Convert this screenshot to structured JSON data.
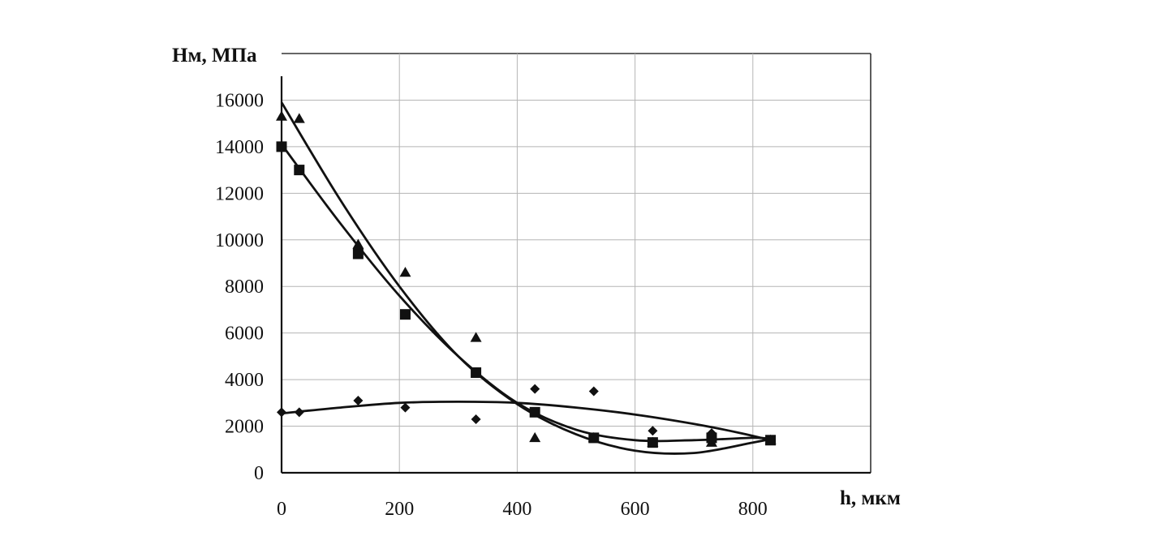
{
  "chart_data": {
    "type": "scatter",
    "ylabel": "Нм, МПа",
    "xlabel": "h, мкм",
    "xlim": [
      0,
      1000
    ],
    "ylim": [
      0,
      18000
    ],
    "xticks": [
      "0",
      "200",
      "400",
      "600",
      "800"
    ],
    "yticks": [
      "0",
      "2000",
      "4000",
      "6000",
      "8000",
      "10000",
      "12000",
      "14000",
      "16000"
    ],
    "grid": true,
    "legend": "none",
    "series": [
      {
        "marker": "triangle",
        "x": [
          0,
          30,
          130,
          210,
          330,
          430,
          530,
          630,
          730,
          830
        ],
        "y": [
          15300,
          15200,
          9800,
          8600,
          5800,
          1500,
          1500,
          1300,
          1300,
          1400
        ],
        "trend": [
          [
            0,
            15900
          ],
          [
            100,
            11700
          ],
          [
            200,
            8000
          ],
          [
            300,
            5000
          ],
          [
            400,
            2950
          ],
          [
            500,
            1650
          ],
          [
            600,
            950
          ],
          [
            700,
            850
          ],
          [
            800,
            1300
          ],
          [
            830,
            1450
          ]
        ]
      },
      {
        "marker": "square",
        "x": [
          0,
          30,
          130,
          210,
          330,
          430,
          530,
          630,
          730,
          830
        ],
        "y": [
          14000,
          13000,
          9400,
          6800,
          4300,
          2600,
          1500,
          1300,
          1500,
          1400
        ],
        "trend": [
          [
            0,
            14100
          ],
          [
            100,
            10700
          ],
          [
            200,
            7600
          ],
          [
            300,
            5000
          ],
          [
            400,
            3000
          ],
          [
            500,
            1850
          ],
          [
            600,
            1400
          ],
          [
            700,
            1400
          ],
          [
            800,
            1500
          ],
          [
            830,
            1450
          ]
        ]
      },
      {
        "marker": "diamond",
        "x": [
          0,
          30,
          130,
          210,
          330,
          430,
          530,
          630,
          730,
          830
        ],
        "y": [
          2600,
          2600,
          3100,
          2800,
          2300,
          3600,
          3500,
          1800,
          1700,
          1400
        ],
        "trend": [
          [
            0,
            2550
          ],
          [
            100,
            2800
          ],
          [
            200,
            3000
          ],
          [
            300,
            3050
          ],
          [
            400,
            3000
          ],
          [
            500,
            2800
          ],
          [
            600,
            2500
          ],
          [
            700,
            2100
          ],
          [
            780,
            1700
          ],
          [
            830,
            1400
          ]
        ]
      }
    ]
  }
}
